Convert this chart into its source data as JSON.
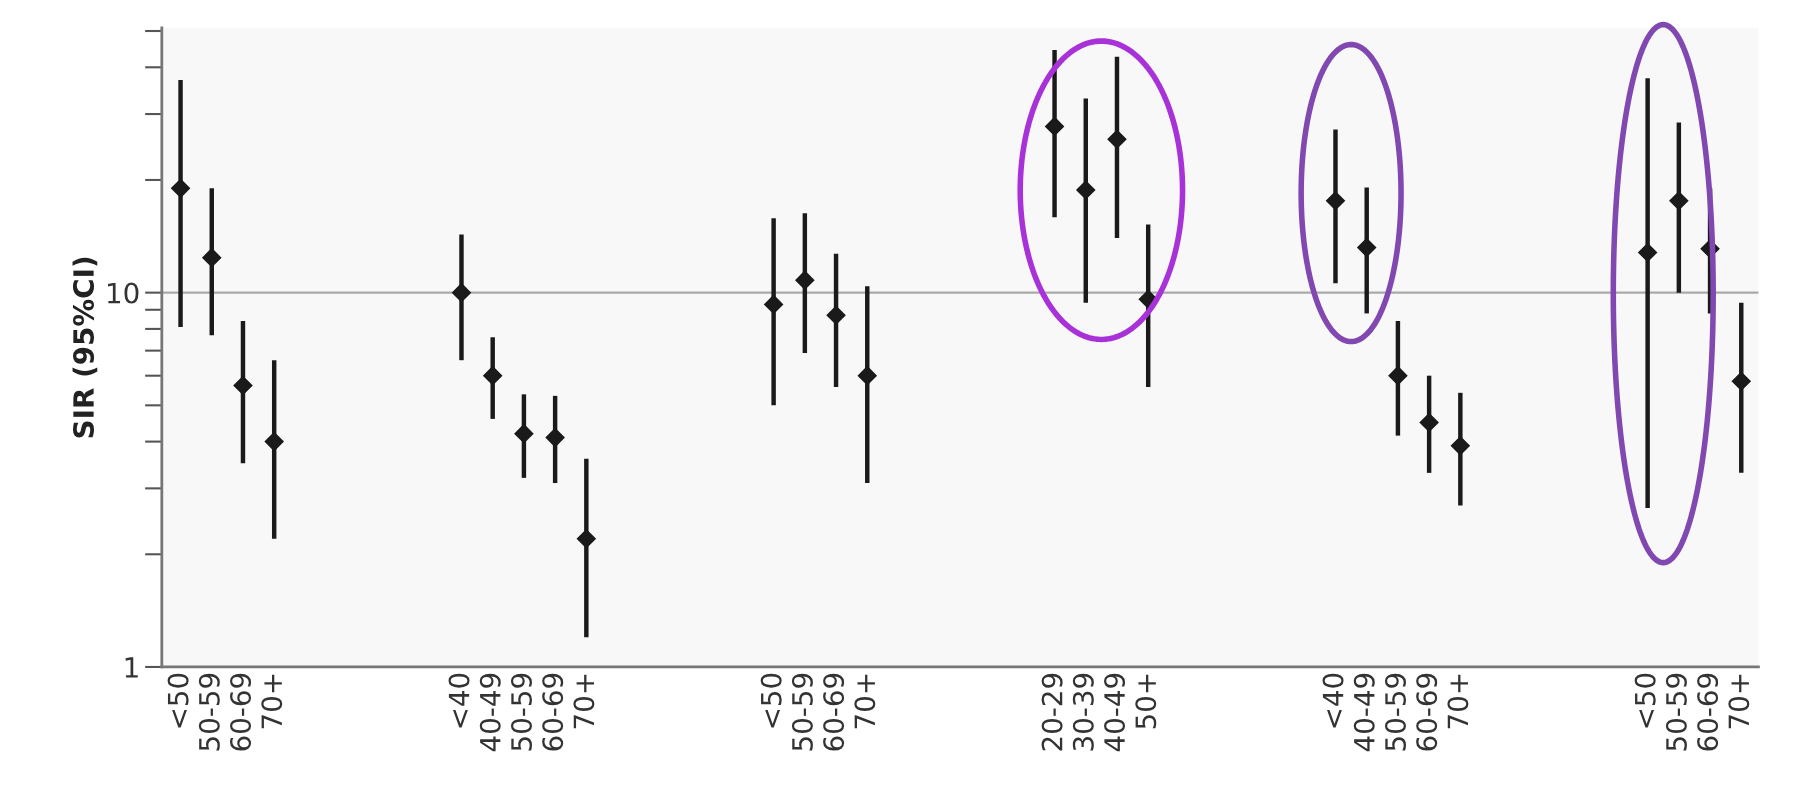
{
  "chart_data": {
    "type": "scatter",
    "ylabel": "SIR (95%CI)",
    "log": "y",
    "marker": "diamond",
    "grid": false,
    "legend": false,
    "categories": [
      "<50",
      "50-59",
      "60-69",
      "70+",
      null,
      null,
      null,
      null,
      null,
      "<40",
      "40-49",
      "50-59",
      "60-69",
      "70+",
      null,
      null,
      null,
      null,
      null,
      "<50",
      "50-59",
      "60-69",
      "70+",
      null,
      null,
      null,
      null,
      null,
      "20-29",
      "30-39",
      "40-49",
      "50+",
      null,
      null,
      null,
      null,
      null,
      "<40",
      "40-49",
      "50-59",
      "60-69",
      "70+",
      null,
      null,
      null,
      null,
      null,
      "<50",
      "50-59",
      "60-69",
      "70+"
    ],
    "series": [
      {
        "color": "#1a1a1a",
        "values": [
          19,
          12.4,
          5.65,
          4.0,
          null,
          null,
          null,
          null,
          null,
          10,
          6.0,
          4.2,
          4.1,
          2.2,
          null,
          null,
          null,
          null,
          null,
          9.3,
          10.8,
          8.7,
          6.0,
          null,
          null,
          null,
          null,
          null,
          27.8,
          18.8,
          25.7,
          9.6,
          null,
          null,
          null,
          null,
          null,
          17.6,
          13.2,
          6.0,
          4.5,
          3.9,
          null,
          null,
          null,
          null,
          null,
          12.8,
          17.6,
          13.1,
          5.8
        ],
        "errors": [
          [
            8.1,
            37
          ],
          [
            7.7,
            19
          ],
          [
            3.5,
            8.4
          ],
          [
            2.2,
            6.6
          ],
          null,
          null,
          null,
          null,
          null,
          [
            6.6,
            14.3
          ],
          [
            4.6,
            7.6
          ],
          [
            3.2,
            5.35
          ],
          [
            3.1,
            5.3
          ],
          [
            1.2,
            3.6
          ],
          null,
          null,
          null,
          null,
          null,
          [
            5.0,
            15.8
          ],
          [
            6.9,
            16.3
          ],
          [
            5.6,
            12.7
          ],
          [
            3.1,
            10.4
          ],
          null,
          null,
          null,
          null,
          null,
          [
            15.9,
            44.5
          ],
          [
            9.4,
            33
          ],
          [
            14.0,
            42.7
          ],
          [
            5.6,
            15.2
          ],
          null,
          null,
          null,
          null,
          null,
          [
            10.6,
            27.3
          ],
          [
            8.8,
            19.1
          ],
          [
            4.15,
            8.4
          ],
          [
            3.3,
            6.0
          ],
          [
            2.7,
            5.4
          ],
          null,
          null,
          null,
          null,
          null,
          [
            2.66,
            37.4
          ],
          [
            10.0,
            28.5
          ],
          [
            8.8,
            19
          ],
          [
            3.3,
            9.4
          ]
        ]
      }
    ],
    "ylim": [
      1,
      51
    ],
    "yticks": [
      1,
      10
    ],
    "ref_lines": [
      {
        "axis": "y",
        "value": 10,
        "color": "#aaaaaa"
      }
    ]
  }
}
